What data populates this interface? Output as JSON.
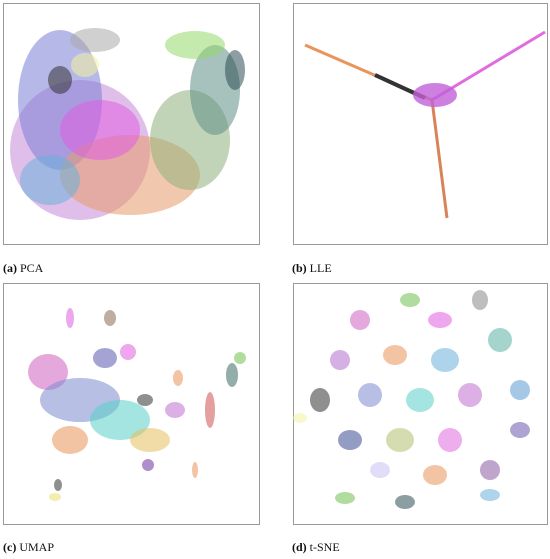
{
  "figure": {
    "panels": [
      {
        "label": "(a)",
        "name": "PCA"
      },
      {
        "label": "(b)",
        "name": "LLE"
      },
      {
        "label": "(c)",
        "name": "UMAP"
      },
      {
        "label": "(d)",
        "name": "t-SNE"
      }
    ]
  }
}
